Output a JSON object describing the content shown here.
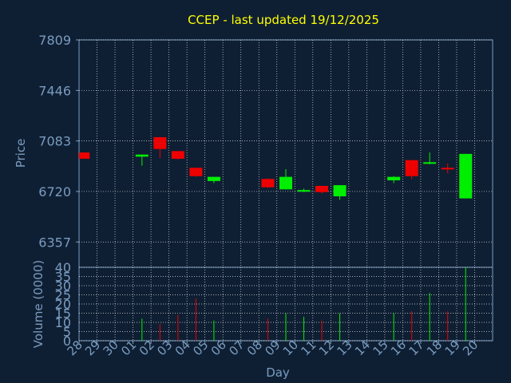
{
  "chart_data": {
    "type": "candlestick",
    "title": "CCEP - last updated 19/12/2025",
    "colors": {
      "background": "#0f1f33",
      "axis": "#7a9cc0",
      "grid": "#ffffff",
      "title": "#ffff00",
      "up": "#00ee00",
      "down": "#ee0000"
    },
    "price_panel": {
      "ylabel": "Price",
      "ylim": [
        6175,
        7809
      ],
      "yticks": [
        "7809",
        "7446",
        "7083",
        "6720",
        "6357"
      ],
      "ytick_values": [
        7809,
        7446,
        7083,
        6720,
        6357
      ]
    },
    "volume_panel": {
      "ylabel": "Volume (0000)",
      "ylim": [
        0,
        40
      ],
      "yticks": [
        "40",
        "35",
        "30",
        "25",
        "20",
        "15",
        "10",
        "5",
        "0"
      ],
      "ytick_values": [
        40,
        35,
        30,
        25,
        20,
        15,
        10,
        5,
        0
      ]
    },
    "xlabel": "Day",
    "x": [
      "28",
      "29",
      "30",
      "01",
      "02",
      "03",
      "04",
      "05",
      "06",
      "07",
      "08",
      "09",
      "10",
      "11",
      "12",
      "13",
      "14",
      "15",
      "16",
      "17",
      "18",
      "19",
      "20"
    ],
    "candles": [
      {
        "day": "28",
        "open": 7000,
        "high": 7000,
        "low": 6955,
        "close": 6955
      },
      {
        "day": "01",
        "open": 6970,
        "high": 6985,
        "low": 6905,
        "close": 6985
      },
      {
        "day": "02",
        "open": 7110,
        "high": 7110,
        "low": 6960,
        "close": 7025
      },
      {
        "day": "03",
        "open": 7010,
        "high": 7010,
        "low": 6950,
        "close": 6955
      },
      {
        "day": "04",
        "open": 6890,
        "high": 6890,
        "low": 6825,
        "close": 6830
      },
      {
        "day": "05",
        "open": 6795,
        "high": 6825,
        "low": 6780,
        "close": 6825
      },
      {
        "day": "08",
        "open": 6810,
        "high": 6815,
        "low": 6745,
        "close": 6750
      },
      {
        "day": "09",
        "open": 6735,
        "high": 6880,
        "low": 6735,
        "close": 6825
      },
      {
        "day": "10",
        "open": 6720,
        "high": 6740,
        "low": 6715,
        "close": 6730
      },
      {
        "day": "11",
        "open": 6760,
        "high": 6760,
        "low": 6705,
        "close": 6715
      },
      {
        "day": "12",
        "open": 6685,
        "high": 6765,
        "low": 6660,
        "close": 6765
      },
      {
        "day": "15",
        "open": 6800,
        "high": 6830,
        "low": 6780,
        "close": 6825
      },
      {
        "day": "16",
        "open": 6945,
        "high": 6945,
        "low": 6810,
        "close": 6830
      },
      {
        "day": "17",
        "open": 6930,
        "high": 7000,
        "low": 6915,
        "close": 6930
      },
      {
        "day": "18",
        "open": 6890,
        "high": 6920,
        "low": 6850,
        "close": 6880
      },
      {
        "day": "19",
        "open": 6670,
        "high": 6990,
        "low": 6670,
        "close": 6990
      }
    ],
    "volume": [
      {
        "day": "01",
        "value": 12
      },
      {
        "day": "02",
        "value": 9
      },
      {
        "day": "03",
        "value": 14
      },
      {
        "day": "04",
        "value": 23
      },
      {
        "day": "05",
        "value": 11
      },
      {
        "day": "08",
        "value": 12
      },
      {
        "day": "09",
        "value": 15
      },
      {
        "day": "10",
        "value": 13
      },
      {
        "day": "11",
        "value": 11
      },
      {
        "day": "12",
        "value": 15
      },
      {
        "day": "15",
        "value": 15
      },
      {
        "day": "16",
        "value": 16
      },
      {
        "day": "17",
        "value": 26
      },
      {
        "day": "18",
        "value": 16
      },
      {
        "day": "19",
        "value": 40
      }
    ]
  }
}
